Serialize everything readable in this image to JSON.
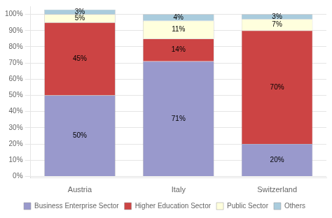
{
  "chart_data": {
    "type": "bar",
    "categories": [
      "Austria",
      "Italy",
      "Switzerland"
    ],
    "series": [
      {
        "name": "Business Enterprise Sector",
        "color": "#9999CC",
        "values": [
          50,
          71,
          20
        ],
        "value_labels": [
          "50%",
          "71%",
          "20%"
        ]
      },
      {
        "name": "Higher Education Sector",
        "color": "#CC4444",
        "values": [
          45,
          14,
          70
        ],
        "value_labels": [
          "45%",
          "14%",
          "70%"
        ]
      },
      {
        "name": "Public Sector",
        "color": "#FFFFDD",
        "values": [
          5,
          11,
          7
        ],
        "value_labels": [
          "5%",
          "11%",
          "7%"
        ]
      },
      {
        "name": "Others",
        "color": "#AACCDD",
        "values": [
          3,
          4,
          3
        ],
        "value_labels": [
          "3%",
          "4%",
          "3%"
        ]
      }
    ],
    "ylim": [
      -1,
      105
    ],
    "yticks": [
      {
        "value": 0,
        "label": "0%"
      },
      {
        "value": 10,
        "label": "10%"
      },
      {
        "value": 20,
        "label": "20%"
      },
      {
        "value": 30,
        "label": "30%"
      },
      {
        "value": 40,
        "label": "40%"
      },
      {
        "value": 50,
        "label": "50%"
      },
      {
        "value": 60,
        "label": "60%"
      },
      {
        "value": 70,
        "label": "70%"
      },
      {
        "value": 80,
        "label": "80%"
      },
      {
        "value": 90,
        "label": "90%"
      },
      {
        "value": 100,
        "label": "100%"
      }
    ],
    "grid": true,
    "stacked": true,
    "data_labels": true,
    "legend": "bottom"
  }
}
